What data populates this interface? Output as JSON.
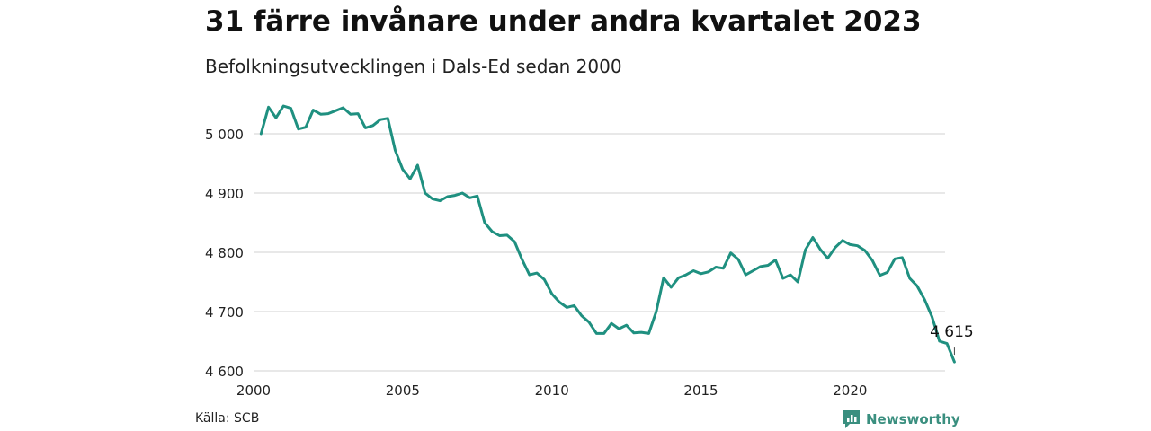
{
  "title": "31 färre invånare under andra kvartalet 2023",
  "subtitle": "Befolkningsutvecklingen i Dals-Ed sedan 2000",
  "source": "Källa: SCB",
  "logo_text": "Newsworthy",
  "colors": {
    "line": "#1f9080",
    "grid": "#d9d9d9",
    "logo": "#3a8f7f"
  },
  "chart_data": {
    "type": "line",
    "x_label": "",
    "y_label": "",
    "xlim": [
      2000,
      2023.75
    ],
    "ylim": [
      4600,
      5060
    ],
    "x_ticks": [
      2000,
      2005,
      2010,
      2015,
      2020
    ],
    "x_tick_labels": [
      "2000",
      "2005",
      "2010",
      "2015",
      "2020"
    ],
    "y_ticks": [
      4600,
      4700,
      4800,
      4900,
      5000
    ],
    "y_tick_labels": [
      "4 600",
      "4 700",
      "4 800",
      "4 900",
      "5 000"
    ],
    "grid": "horizontal",
    "end_label": "4 615",
    "series": [
      {
        "x": [
          2000.25,
          2000.5,
          2000.75,
          2001.0,
          2001.25,
          2001.5,
          2001.75,
          2002.0,
          2002.25,
          2002.5,
          2002.75,
          2003.0,
          2003.25,
          2003.5,
          2003.75,
          2004.0,
          2004.25,
          2004.5,
          2004.75,
          2005.0,
          2005.25,
          2005.5,
          2005.75,
          2006.0,
          2006.25,
          2006.5,
          2006.75,
          2007.0,
          2007.25,
          2007.5,
          2007.75,
          2008.0,
          2008.25,
          2008.5,
          2008.75,
          2009.0,
          2009.25,
          2009.5,
          2009.75,
          2010.0,
          2010.25,
          2010.5,
          2010.75,
          2011.0,
          2011.25,
          2011.5,
          2011.75,
          2012.0,
          2012.25,
          2012.5,
          2012.75,
          2013.0,
          2013.25,
          2013.5,
          2013.75,
          2014.0,
          2014.25,
          2014.5,
          2014.75,
          2015.0,
          2015.25,
          2015.5,
          2015.75,
          2016.0,
          2016.25,
          2016.5,
          2016.75,
          2017.0,
          2017.25,
          2017.5,
          2017.75,
          2018.0,
          2018.25,
          2018.5,
          2018.75,
          2019.0,
          2019.25,
          2019.5,
          2019.75,
          2020.0,
          2020.25,
          2020.5,
          2020.75,
          2021.0,
          2021.25,
          2021.5,
          2021.75,
          2022.0,
          2022.25,
          2022.5,
          2022.75,
          2023.0,
          2023.25,
          2023.5
        ],
        "y": [
          5000,
          5045,
          5027,
          5047,
          5043,
          5008,
          5011,
          5040,
          5033,
          5034,
          5039,
          5044,
          5033,
          5034,
          5010,
          5014,
          5024,
          5026,
          4972,
          4940,
          4924,
          4947,
          4900,
          4890,
          4887,
          4894,
          4896,
          4900,
          4892,
          4895,
          4850,
          4835,
          4828,
          4829,
          4818,
          4788,
          4762,
          4765,
          4754,
          4730,
          4716,
          4707,
          4710,
          4693,
          4682,
          4663,
          4663,
          4680,
          4671,
          4677,
          4664,
          4665,
          4663,
          4700,
          4757,
          4741,
          4757,
          4762,
          4769,
          4764,
          4767,
          4775,
          4773,
          4799,
          4788,
          4762,
          4769,
          4776,
          4778,
          4787,
          4756,
          4762,
          4750,
          4804,
          4825,
          4805,
          4790,
          4808,
          4820,
          4813,
          4811,
          4803,
          4786,
          4761,
          4766,
          4789,
          4791,
          4756,
          4743,
          4720,
          4691,
          4650,
          4646,
          4615
        ]
      }
    ]
  }
}
